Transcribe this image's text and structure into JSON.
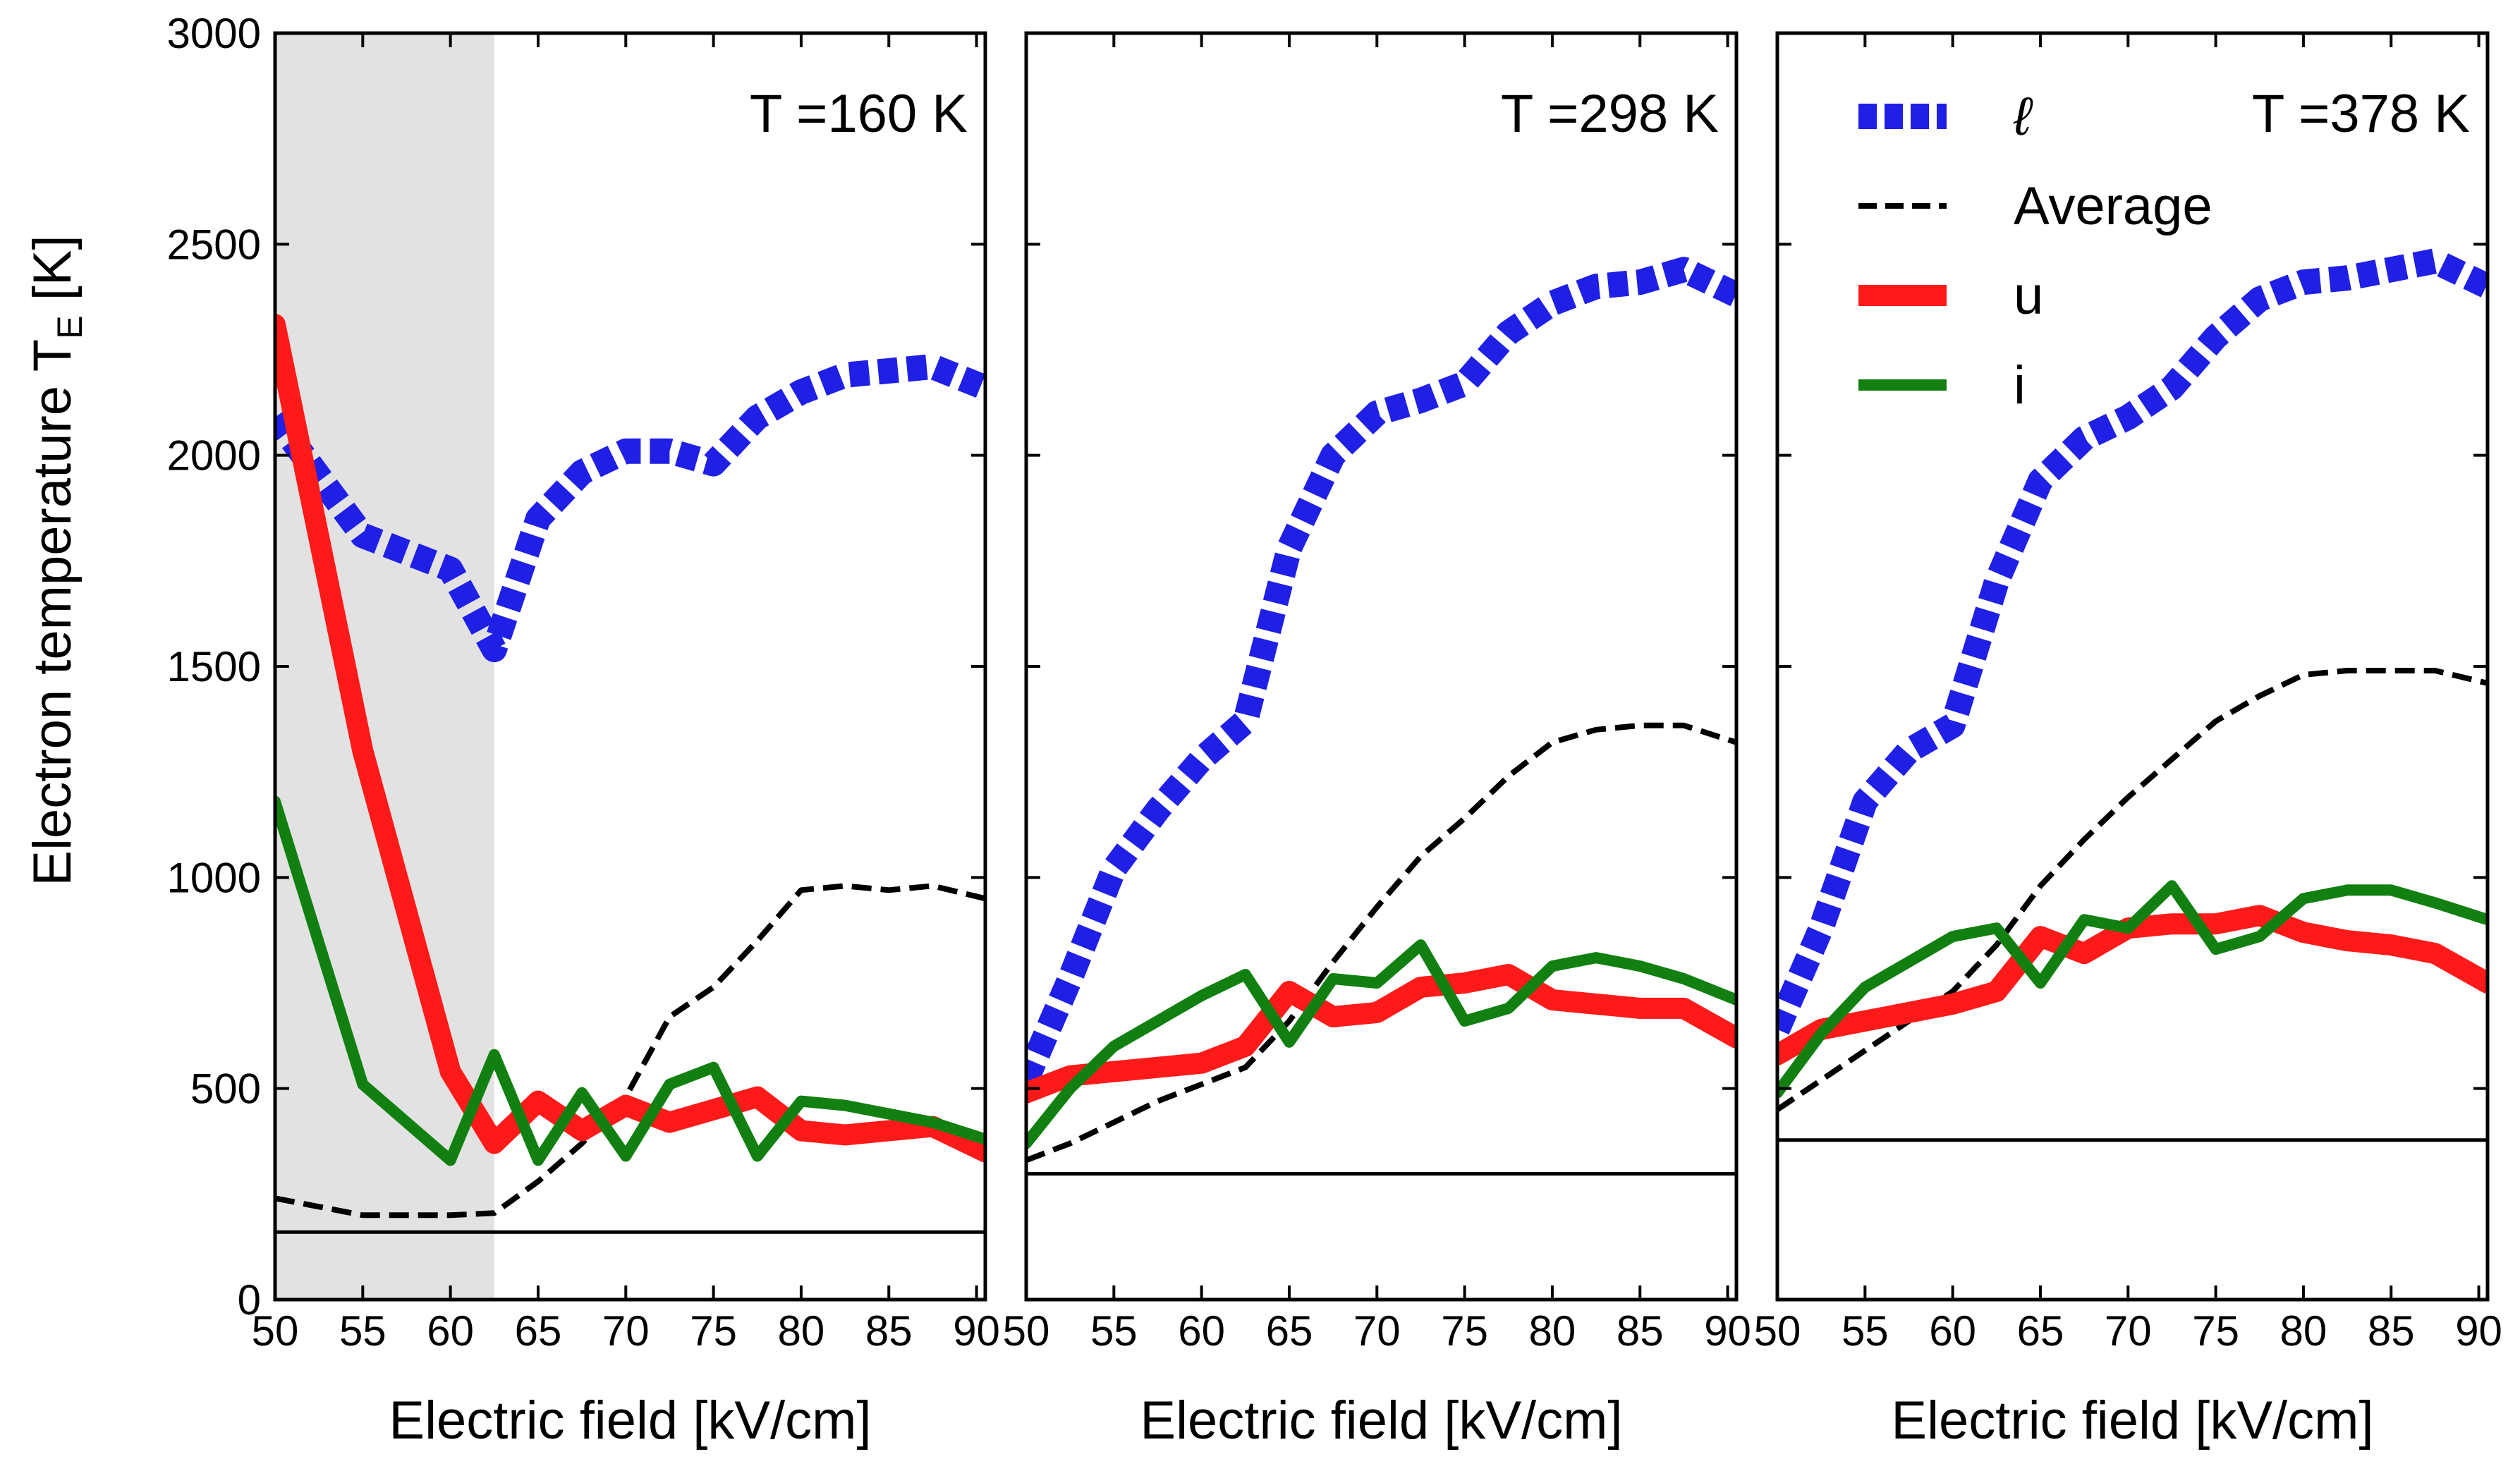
{
  "ylabel_main": "Electron temperature T",
  "ylabel_sub": "E",
  "ylabel_unit": " [K]",
  "colors": {
    "l": "#1f1fe6",
    "average": "#000000",
    "u": "#ff1a1a",
    "i": "#118011",
    "shade": "#e2e2e2",
    "reference": "#000000"
  },
  "legend": {
    "placement": "top-left of right panel",
    "entries": [
      {
        "key": "l",
        "label": "ℓ",
        "style": "dotted-thick"
      },
      {
        "key": "average",
        "label": "Average",
        "style": "dashed"
      },
      {
        "key": "u",
        "label": "u",
        "style": "solid-thick"
      },
      {
        "key": "i",
        "label": "i",
        "style": "solid"
      }
    ]
  },
  "chart_data": [
    {
      "type": "line",
      "title": "T =160 K",
      "xlabel": "Electric field [kV/cm]",
      "ylabel": "Electron temperature T_E [K]",
      "xlim": [
        50,
        90.5
      ],
      "ylim": [
        0,
        3000
      ],
      "xticks": [
        "50",
        "55",
        "60",
        "65",
        "70",
        "75",
        "80",
        "85",
        "90"
      ],
      "yticks": [
        "0",
        "500",
        "1000",
        "1500",
        "2000",
        "2500",
        "3000"
      ],
      "grid": false,
      "shaded_region_x": [
        50,
        62.5
      ],
      "reference_line_y": 160,
      "series": [
        {
          "key": "l",
          "x": [
            50,
            52.5,
            55,
            57.5,
            60,
            62.5,
            65,
            67.5,
            70,
            72.5,
            75,
            77.5,
            80,
            82.5,
            85,
            87.5,
            90.5
          ],
          "y": [
            2090,
            1950,
            1810,
            1770,
            1730,
            1540,
            1850,
            1960,
            2010,
            2010,
            1980,
            2090,
            2150,
            2190,
            2200,
            2210,
            2160
          ]
        },
        {
          "key": "average",
          "x": [
            50,
            52.5,
            55,
            57.5,
            60,
            62.5,
            65,
            67.5,
            70,
            72.5,
            75,
            77.5,
            80,
            82.5,
            85,
            87.5,
            90.5
          ],
          "y": [
            240,
            220,
            200,
            200,
            200,
            205,
            280,
            370,
            480,
            670,
            740,
            850,
            970,
            980,
            970,
            980,
            950
          ]
        },
        {
          "key": "u",
          "x": [
            50,
            55,
            60,
            62.5,
            65,
            67.5,
            70,
            72.5,
            75,
            77.5,
            80,
            82.5,
            85,
            87.5,
            90.5
          ],
          "y": [
            2310,
            1300,
            540,
            370,
            470,
            400,
            460,
            420,
            450,
            480,
            400,
            390,
            400,
            410,
            350
          ]
        },
        {
          "key": "i",
          "x": [
            50,
            55,
            60,
            62.5,
            65,
            67.5,
            70,
            72.5,
            75,
            77.5,
            80,
            82.5,
            85,
            87.5,
            90.5
          ],
          "y": [
            1180,
            510,
            330,
            580,
            330,
            490,
            340,
            510,
            550,
            340,
            470,
            460,
            440,
            420,
            380
          ]
        }
      ]
    },
    {
      "type": "line",
      "title": "T =298 K",
      "xlabel": "Electric field [kV/cm]",
      "ylabel": "",
      "xlim": [
        50,
        90.5
      ],
      "ylim": [
        0,
        3000
      ],
      "xticks": [
        "50",
        "55",
        "60",
        "65",
        "70",
        "75",
        "80",
        "85",
        "90"
      ],
      "yticks": [],
      "grid": false,
      "reference_line_y": 298,
      "series": [
        {
          "key": "l",
          "x": [
            50,
            52.5,
            55,
            57.5,
            60,
            62.5,
            65,
            67.5,
            70,
            72.5,
            75,
            77.5,
            80,
            82.5,
            85,
            87.5,
            90.5
          ],
          "y": [
            520,
            760,
            1020,
            1160,
            1280,
            1370,
            1780,
            2000,
            2100,
            2130,
            2170,
            2290,
            2360,
            2400,
            2410,
            2440,
            2380
          ]
        },
        {
          "key": "average",
          "x": [
            50,
            52.5,
            55,
            57.5,
            60,
            62.5,
            65,
            67.5,
            70,
            72.5,
            75,
            77.5,
            80,
            82.5,
            85,
            87.5,
            90.5
          ],
          "y": [
            330,
            370,
            420,
            470,
            510,
            550,
            660,
            800,
            930,
            1050,
            1140,
            1240,
            1320,
            1350,
            1360,
            1360,
            1320
          ]
        },
        {
          "key": "u",
          "x": [
            50,
            52.5,
            55,
            57.5,
            60,
            62.5,
            65,
            67.5,
            70,
            72.5,
            75,
            77.5,
            80,
            82.5,
            85,
            87.5,
            90.5
          ],
          "y": [
            490,
            530,
            540,
            550,
            560,
            600,
            730,
            670,
            680,
            740,
            750,
            770,
            710,
            700,
            690,
            690,
            620
          ]
        },
        {
          "key": "i",
          "x": [
            50,
            52.5,
            55,
            57.5,
            60,
            62.5,
            65,
            67.5,
            70,
            72.5,
            75,
            77.5,
            80,
            82.5,
            85,
            87.5,
            90.5
          ],
          "y": [
            370,
            500,
            600,
            660,
            720,
            770,
            610,
            760,
            750,
            840,
            660,
            690,
            790,
            810,
            790,
            760,
            710
          ]
        }
      ]
    },
    {
      "type": "line",
      "title": "T =378 K",
      "xlabel": "Electric field [kV/cm]",
      "ylabel": "",
      "xlim": [
        50,
        90.5
      ],
      "ylim": [
        0,
        3000
      ],
      "xticks": [
        "50",
        "55",
        "60",
        "65",
        "70",
        "75",
        "80",
        "85",
        "90"
      ],
      "yticks": [],
      "grid": false,
      "reference_line_y": 378,
      "series": [
        {
          "key": "l",
          "x": [
            50,
            52.5,
            55,
            57.5,
            60,
            62.5,
            65,
            67.5,
            70,
            72.5,
            75,
            77.5,
            80,
            82.5,
            85,
            87.5,
            90.5
          ],
          "y": [
            640,
            880,
            1180,
            1300,
            1360,
            1700,
            1940,
            2040,
            2090,
            2160,
            2280,
            2370,
            2410,
            2420,
            2440,
            2460,
            2400
          ]
        },
        {
          "key": "average",
          "x": [
            50,
            52.5,
            55,
            57.5,
            60,
            62.5,
            65,
            67.5,
            70,
            72.5,
            75,
            77.5,
            80,
            82.5,
            85,
            87.5,
            90.5
          ],
          "y": [
            450,
            520,
            590,
            660,
            730,
            840,
            980,
            1090,
            1190,
            1280,
            1370,
            1430,
            1480,
            1490,
            1490,
            1490,
            1460
          ]
        },
        {
          "key": "u",
          "x": [
            50,
            52.5,
            55,
            57.5,
            60,
            62.5,
            65,
            67.5,
            70,
            72.5,
            75,
            77.5,
            80,
            82.5,
            85,
            87.5,
            90.5
          ],
          "y": [
            580,
            640,
            660,
            680,
            700,
            730,
            860,
            820,
            880,
            890,
            890,
            910,
            870,
            850,
            840,
            820,
            750
          ]
        },
        {
          "key": "i",
          "x": [
            50,
            52.5,
            55,
            57.5,
            60,
            62.5,
            65,
            67.5,
            70,
            72.5,
            75,
            77.5,
            80,
            82.5,
            85,
            87.5,
            90.5
          ],
          "y": [
            490,
            630,
            740,
            800,
            860,
            880,
            750,
            900,
            880,
            980,
            830,
            860,
            950,
            970,
            970,
            940,
            900
          ]
        }
      ]
    }
  ]
}
